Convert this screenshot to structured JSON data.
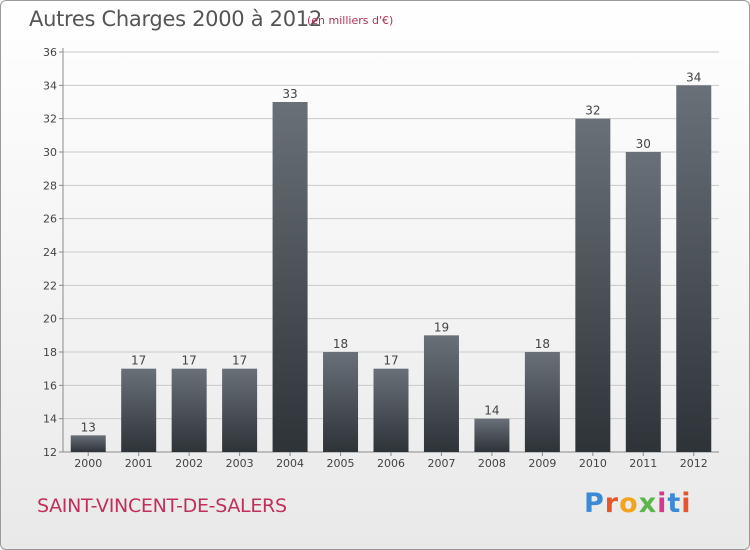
{
  "chart_data": {
    "type": "bar",
    "title": "Autres Charges 2000 à 2012",
    "subtitle": "(en milliers d'€)",
    "categories": [
      "2000",
      "2001",
      "2002",
      "2003",
      "2004",
      "2005",
      "2006",
      "2007",
      "2008",
      "2009",
      "2010",
      "2011",
      "2012"
    ],
    "values": [
      13,
      17,
      17,
      17,
      33,
      18,
      17,
      19,
      14,
      18,
      32,
      30,
      34
    ],
    "ylim": [
      12,
      36
    ],
    "yticks": [
      12,
      14,
      16,
      18,
      20,
      22,
      24,
      26,
      28,
      30,
      32,
      34,
      36
    ],
    "grid": true,
    "colors": {
      "bar_top": "#6a7078",
      "bar_bottom": "#2e3338",
      "grid": "#c9c9c9",
      "axis": "#8a8a8a"
    }
  },
  "footer": {
    "city": "SAINT-VINCENT-DE-SALERS"
  },
  "logo": {
    "letters": [
      "P",
      "r",
      "o",
      "x",
      "i",
      "t",
      "i"
    ],
    "colors": [
      "#3a8ad6",
      "#e7562a",
      "#f2a41e",
      "#5cb54a",
      "#d33a8a",
      "#3a8ad6",
      "#e7562a"
    ]
  }
}
